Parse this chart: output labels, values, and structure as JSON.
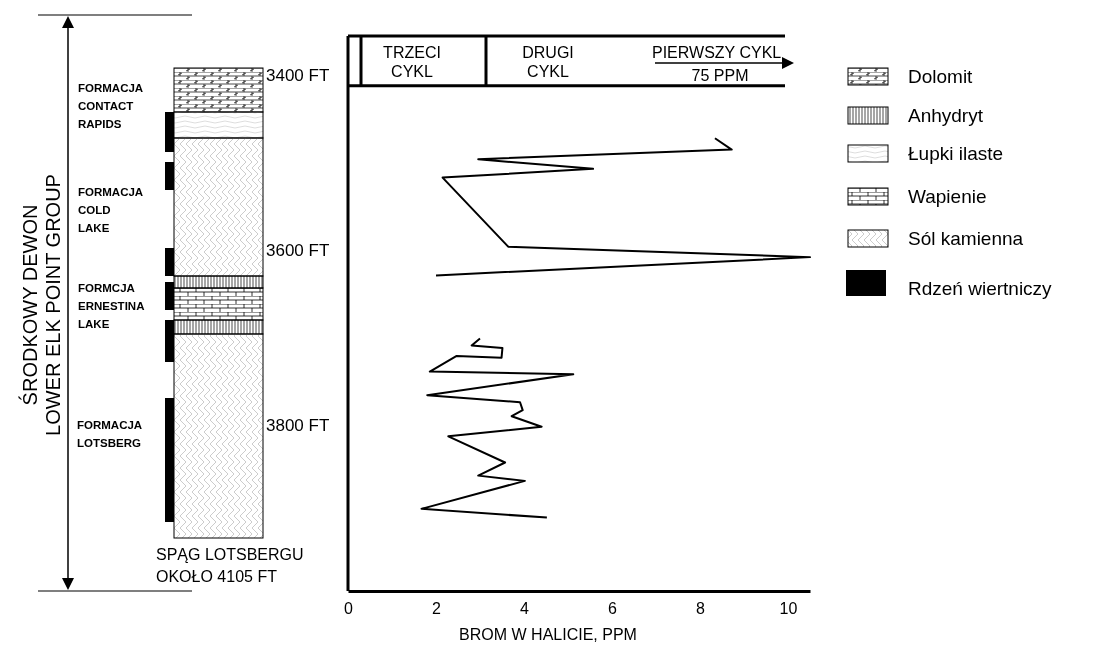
{
  "chart_data": {
    "type": "line",
    "xlabel": "BROM W HALICIE, PPM",
    "xlim": [
      0,
      10.5
    ],
    "xticks": [
      0,
      2,
      4,
      6,
      8,
      10
    ],
    "ylim": [
      3990,
      3355
    ],
    "yticks": [
      {
        "value": 3400,
        "label": "3400 FT"
      },
      {
        "value": 3600,
        "label": "3600 FT"
      },
      {
        "value": 3800,
        "label": "3800 FT"
      }
    ],
    "series": [
      {
        "color": "#000000",
        "x": [
          8.34,
          8.72,
          2.96,
          5.57,
          2.15,
          3.64,
          10.5,
          2.0
        ],
        "values": [
          3472,
          3485,
          3496,
          3507,
          3517,
          3596,
          3608,
          3629
        ]
      },
      {
        "color": "#000000",
        "x": [
          3.0,
          2.81,
          3.51,
          3.49,
          2.47,
          1.86,
          5.12,
          1.8,
          3.91,
          3.97,
          3.72,
          4.4,
          2.28,
          3.57,
          2.96,
          4.02,
          1.67,
          4.52
        ],
        "values": [
          3701,
          3709,
          3712,
          3723,
          3721,
          3739,
          3742,
          3766,
          3774,
          3783,
          3790,
          3802,
          3813,
          3843,
          3858,
          3864,
          3896,
          3906
        ]
      }
    ],
    "ref_lines": [
      {
        "axis": "y",
        "value": 3412
      }
    ],
    "annotations": [
      "ŚRODKOWY DEWON",
      "LOWER ELK POINT GROUP",
      "FORMACJA\nCONTACT\nRAPIDS",
      "FORMACJA\nCOLD\nLAKE",
      "FORMCJA\nERNESTINA\nLAKE",
      "FORMACJA\nLOTSBERG",
      "SPĄG LOTSBERGU\nOKOŁO 4105 FT",
      "TRZECI\nCYKL",
      "DRUGI\nCYKL",
      "PIERWSZY CYKL",
      "75 PPM",
      "Dolomit",
      "Anhydryt",
      "Łupki ilaste",
      "Wapienie",
      "Sól kamienna",
      "Rdzeń wiertniczy"
    ]
  }
}
